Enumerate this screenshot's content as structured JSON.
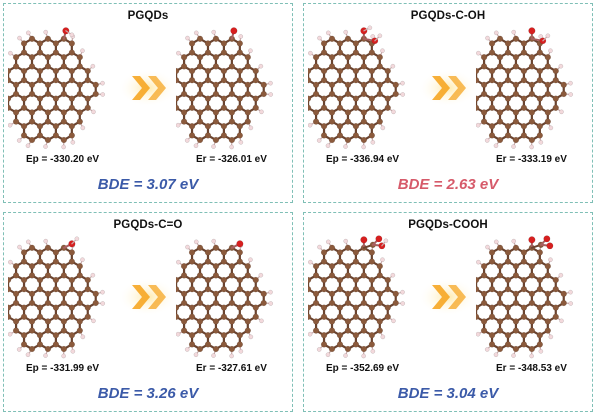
{
  "colors": {
    "border": "#7fbfb6",
    "carbon": "#8b5a3c",
    "hydrogen": "#f3d9dc",
    "oxygen": "#d71f1f",
    "arrow": "#f6a623",
    "bde_blue": "#3b5aa8",
    "bde_red": "#d65a6a"
  },
  "panels": [
    {
      "title": "PGQDs",
      "group": "",
      "ep": "Ep = -330.20 eV",
      "er": "Er = -326.01 eV",
      "bde": "BDE = 3.07 eV",
      "bde_color": "#3b5aa8",
      "group_icon": "oxygen-radical-icon"
    },
    {
      "title": "PGQDs-C-OH",
      "group": "OH",
      "ep": "Ep = -336.94 eV",
      "er": "Er = -333.19 eV",
      "bde": "BDE = 2.63 eV",
      "bde_color": "#d65a6a",
      "group_icon": "hydroxyl-group-icon"
    },
    {
      "title": "PGQDs-C=O",
      "group": "CO",
      "ep": "Ep = -331.99 eV",
      "er": "Er = -327.61 eV",
      "bde": "BDE = 3.26 eV",
      "bde_color": "#3b5aa8",
      "group_icon": "carbonyl-group-icon"
    },
    {
      "title": "PGQDs-COOH",
      "group": "COOH",
      "ep": "Ep = -352.69 eV",
      "er": "Er = -348.53 eV",
      "bde": "BDE = 3.04 eV",
      "bde_color": "#3b5aa8",
      "group_icon": "carboxyl-group-icon"
    }
  ]
}
